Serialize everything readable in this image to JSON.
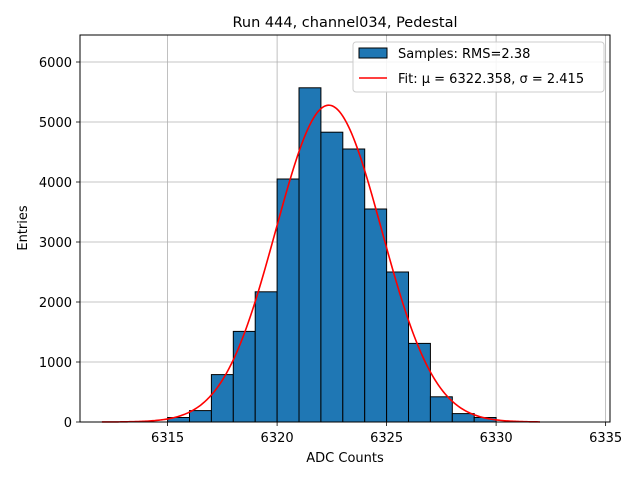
{
  "chart_data": {
    "type": "bar",
    "title": "Run 444, channel034, Pedestal",
    "xlabel": "ADC Counts",
    "ylabel": "Entries",
    "xlim": [
      6311,
      6335.2
    ],
    "ylim": [
      0,
      6450
    ],
    "x_ticks": [
      6315,
      6320,
      6325,
      6330,
      6335
    ],
    "y_ticks": [
      0,
      1000,
      2000,
      3000,
      4000,
      5000,
      6000
    ],
    "grid": true,
    "legend_position": "top-right",
    "histogram": {
      "name": "Samples: RMS=2.38",
      "bin_edges": [
        6315,
        6316,
        6317,
        6318,
        6319,
        6320,
        6321,
        6322,
        6323,
        6324,
        6325,
        6326,
        6327,
        6328,
        6329,
        6330
      ],
      "values": [
        75,
        190,
        790,
        1510,
        2170,
        4050,
        5570,
        4830,
        4550,
        3550,
        2500,
        1310,
        420,
        140,
        75
      ],
      "color": "#1f77b4",
      "edge_color": "#000000"
    },
    "fit": {
      "name": "Fit: μ = 6322.358, σ = 2.415",
      "mu": 6322.358,
      "sigma": 2.415,
      "amplitude": 5280,
      "x_range": [
        6312,
        6332
      ],
      "color": "#ff0000"
    }
  }
}
